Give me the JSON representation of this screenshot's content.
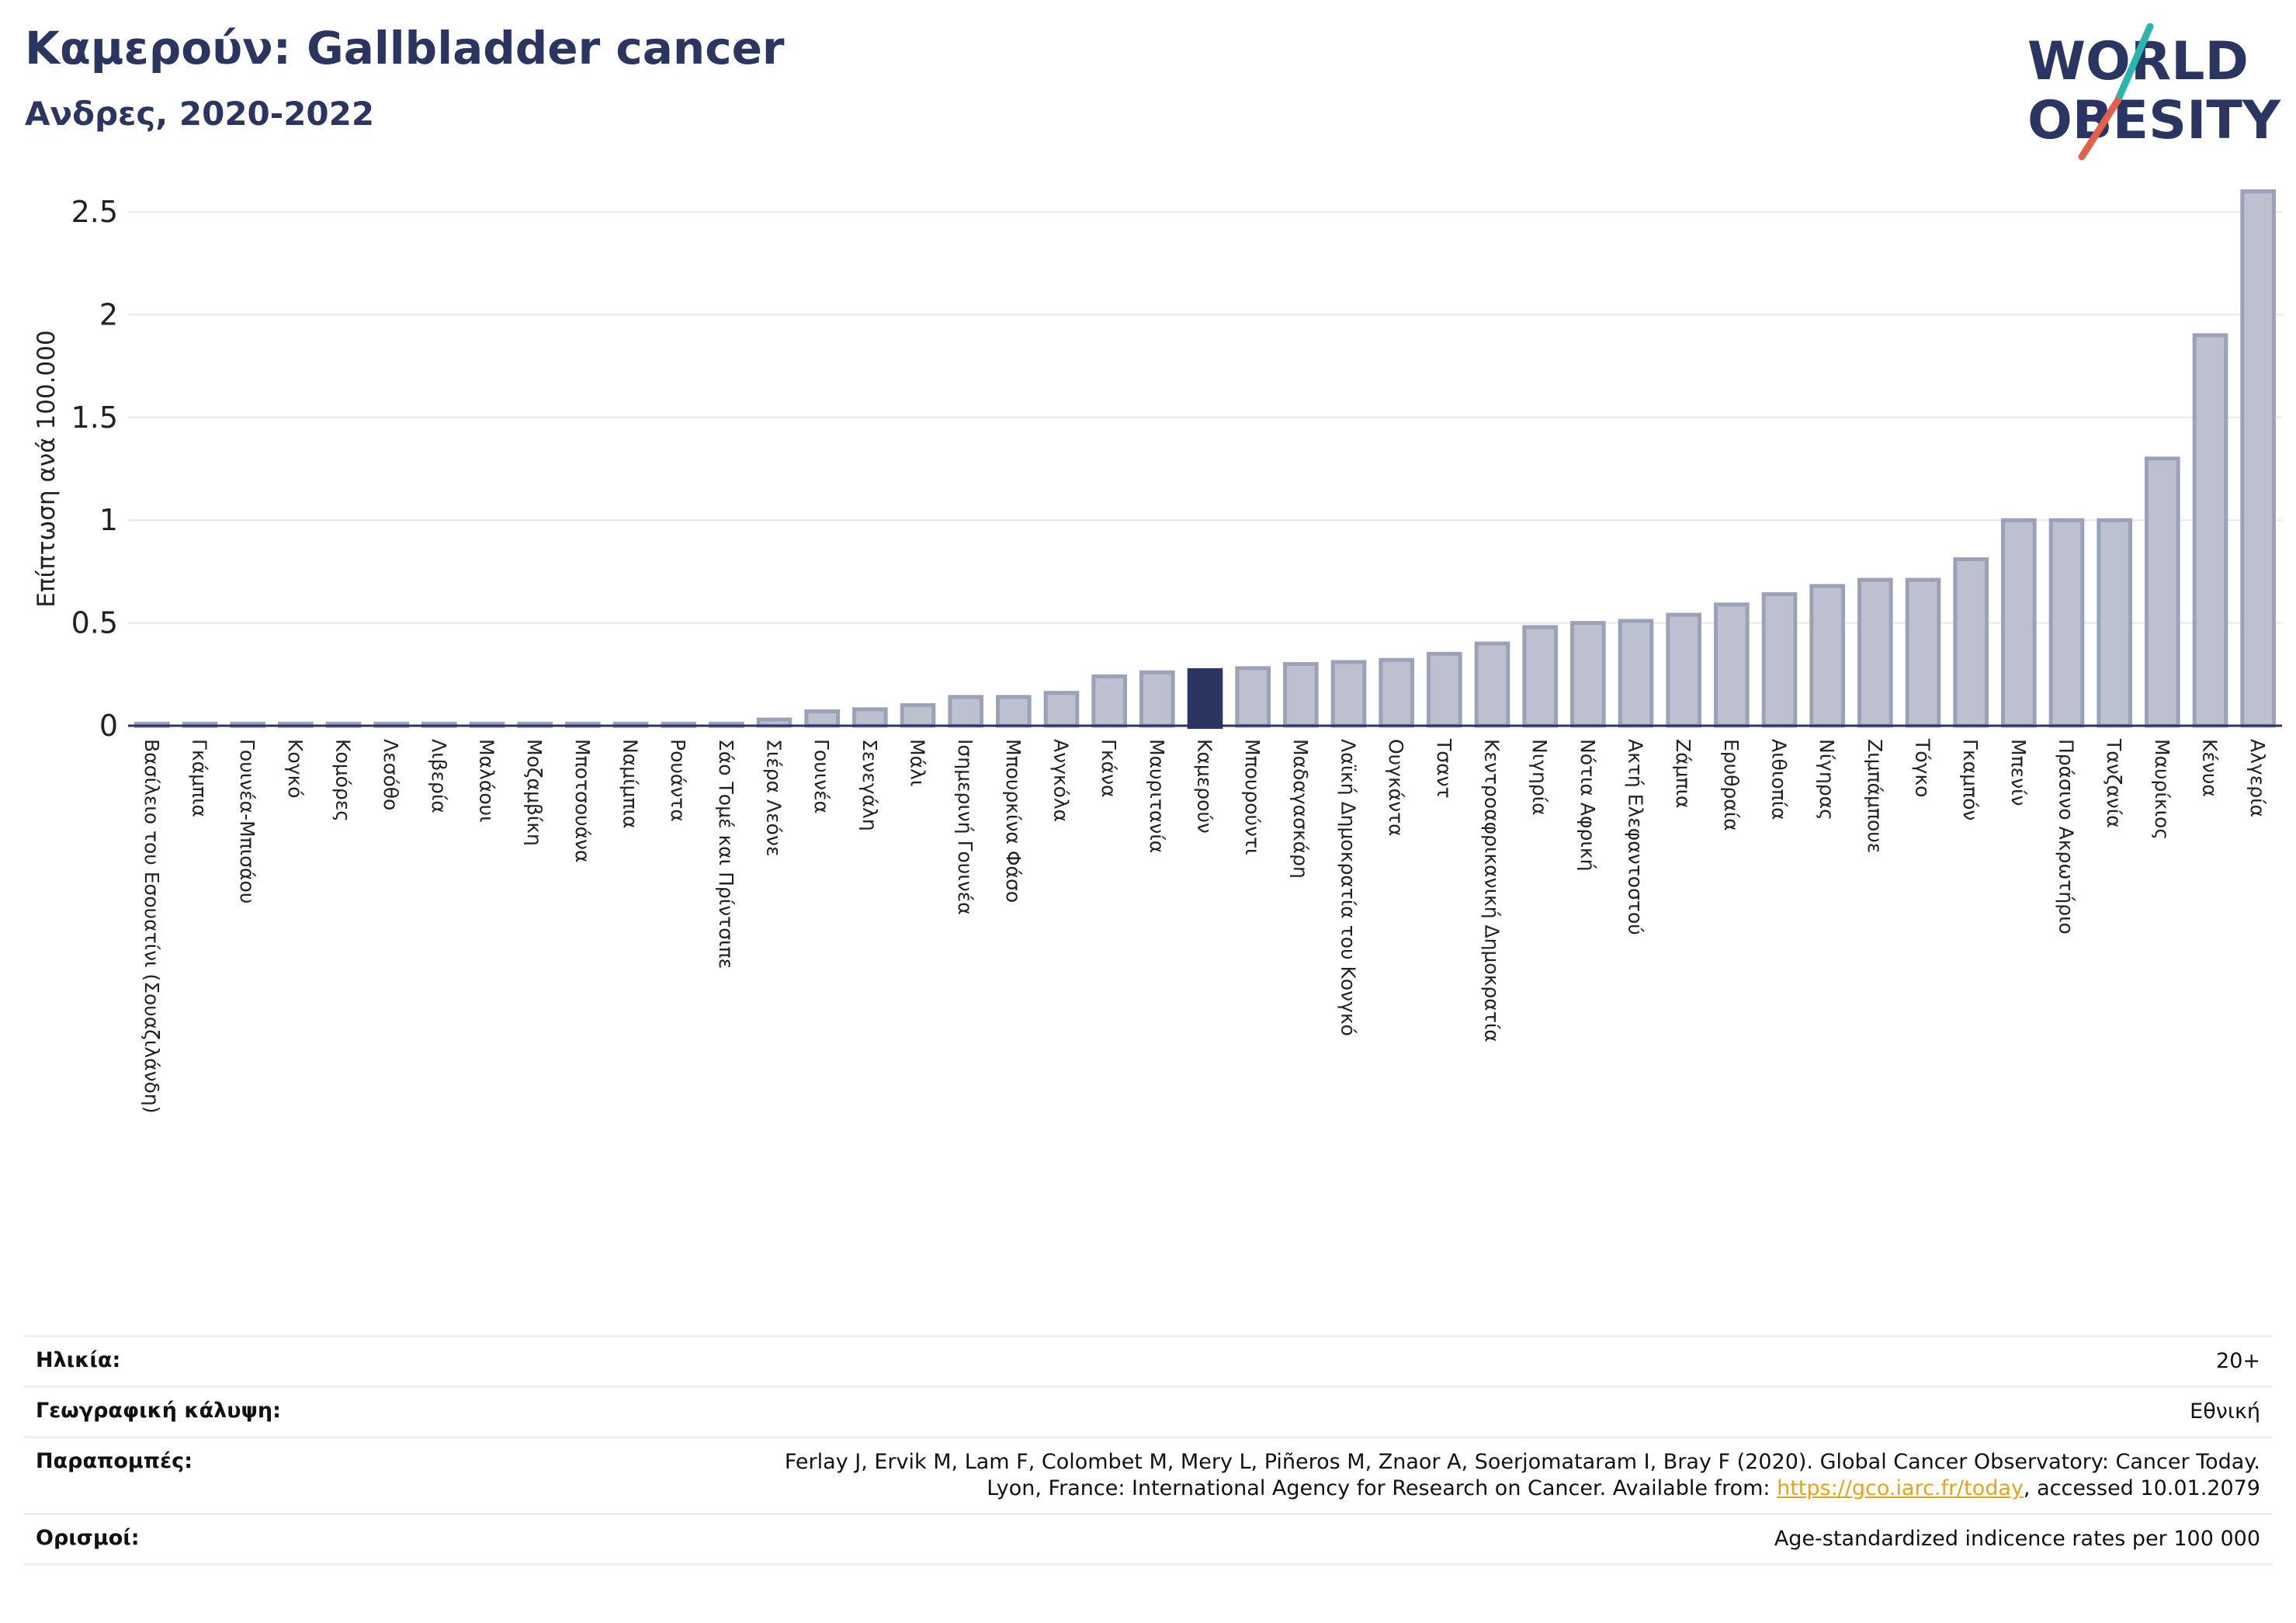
{
  "header": {
    "title": "Καμερούν: Gallbladder cancer",
    "subtitle": "Ανδρες, 2020-2022"
  },
  "logo": {
    "line1": "WORLD",
    "line2": "OBESITY"
  },
  "colors": {
    "highlight_bar": "#2b3562",
    "bar_fill": "#bcc0cf",
    "bar_stroke": "#9ba1b8",
    "title": "#2b3562",
    "logo_teal": "#2bb5b0",
    "logo_red": "#e4604a",
    "link": "#e8a317"
  },
  "chart_data": {
    "type": "bar",
    "ylabel": "Επίπτωση ανά 100.000",
    "ylim": [
      0,
      2.6
    ],
    "yticks": [
      0,
      0.5,
      1,
      1.5,
      2,
      2.5
    ],
    "ytick_labels": [
      "0",
      "0.5",
      "1",
      "1.5",
      "2",
      "2.5"
    ],
    "grid": true,
    "highlight": "Καμερούν",
    "categories": [
      "Βασίλειο του Εσουατίνι (Σουαζιλάνδη)",
      "Γκάμπια",
      "Γουινέα-Μπισάου",
      "Κογκό",
      "Κομόρες",
      "Λεσόθο",
      "Λιβερία",
      "Μαλάουι",
      "Μοζαμβίκη",
      "Μποτσουάνα",
      "Ναμίμπια",
      "Ρουάντα",
      "Σάο Τομέ και Πρίντσιπε",
      "Σιέρα Λεόνε",
      "Γουινέα",
      "Σενεγάλη",
      "Μάλι",
      "Ισημερινή Γουινέα",
      "Μπουρκίνα Φάσο",
      "Ανγκόλα",
      "Γκάνα",
      "Μαυριτανία",
      "Καμερούν",
      "Μπουρούντι",
      "Μαδαγασκάρη",
      "Λαϊκή Δημοκρατία του Κονγκό",
      "Ουγκάντα",
      "Τσαντ",
      "Κεντροαφρικανική Δημοκρατία",
      "Νιγηρία",
      "Νότια Αφρική",
      "Ακτή Ελεφαντοστού",
      "Ζάμπια",
      "Ερυθραία",
      "Αιθιοπία",
      "Νίγηρας",
      "Ζιμπάμπουε",
      "Τόγκο",
      "Γκαμπόν",
      "Μπενίν",
      "Πράσινο Ακρωτήριο",
      "Τανζανία",
      "Μαυρίκιος",
      "Κένυα",
      "Αλγερία"
    ],
    "values": [
      0.01,
      0.01,
      0.01,
      0.01,
      0.01,
      0.01,
      0.01,
      0.01,
      0.01,
      0.01,
      0.01,
      0.01,
      0.01,
      0.03,
      0.07,
      0.08,
      0.1,
      0.14,
      0.14,
      0.16,
      0.24,
      0.26,
      0.28,
      0.28,
      0.3,
      0.31,
      0.32,
      0.35,
      0.4,
      0.48,
      0.5,
      0.51,
      0.54,
      0.59,
      0.64,
      0.68,
      0.71,
      0.71,
      0.81,
      1.0,
      1.0,
      1.0,
      1.3,
      1.9,
      2.6
    ]
  },
  "info": {
    "age_label": "Ηλικία:",
    "age_value": "20+",
    "coverage_label": "Γεωγραφική κάλυψη:",
    "coverage_value": "Εθνική",
    "refs_label": "Παραπομπές:",
    "refs_line1": "Ferlay J, Ervik M, Lam F, Colombet M, Mery L, Piñeros M, Znaor A, Soerjomataram I, Bray F (2020). Global Cancer Observatory: Cancer Today.",
    "refs_line2_pre": "Lyon, France: International Agency for Research on Cancer. Available from: ",
    "refs_link": "https://gco.iarc.fr/today",
    "refs_line2_post": ", accessed 10.01.2079",
    "defs_label": "Ορισμοί:",
    "defs_value": "Age-standardized indicence rates per 100 000"
  }
}
